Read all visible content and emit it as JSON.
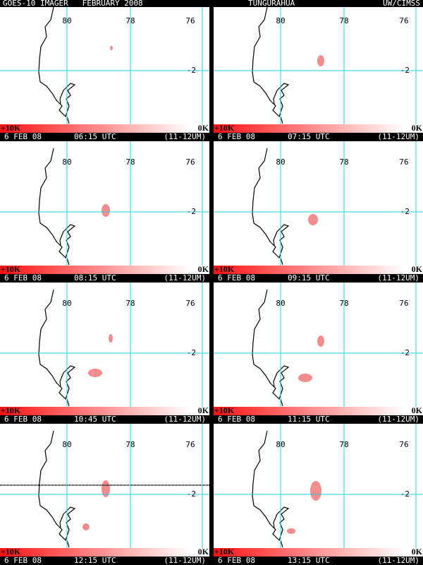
{
  "header": {
    "left": "GOES-10 IMAGER   FEBRUARY 2008",
    "center": "TUNGURAHUA",
    "right": "UW/CIMSS"
  },
  "panels": [
    {
      "date": "6 FEB 08",
      "time": "06:15 UTC",
      "band": "(11-12UM)",
      "scale_max": "+10K",
      "scale_min": "0K",
      "lon_labels": [
        "80",
        "78",
        "76"
      ],
      "lat_label": "-2"
    },
    {
      "date": "6 FEB 08",
      "time": "07:15 UTC",
      "band": "(11-12UM)",
      "scale_max": "+10K",
      "scale_min": "0K",
      "lon_labels": [
        "80",
        "78",
        "76"
      ],
      "lat_label": "-2"
    },
    {
      "date": "6 FEB 08",
      "time": "08:15 UTC",
      "band": "(11-12UM)",
      "scale_max": "+10K",
      "scale_min": "0K",
      "lon_labels": [
        "80",
        "78",
        "76"
      ],
      "lat_label": "-2"
    },
    {
      "date": "6 FEB 08",
      "time": "09:15 UTC",
      "band": "(11-12UM)",
      "scale_max": "+10K",
      "scale_min": "0K",
      "lon_labels": [
        "80",
        "78",
        "76"
      ],
      "lat_label": "-2"
    },
    {
      "date": "6 FEB 08",
      "time": "10:45 UTC",
      "band": "(11-12UM)",
      "scale_max": "+10K",
      "scale_min": "0K",
      "lon_labels": [
        "80",
        "78",
        "76"
      ],
      "lat_label": "-2"
    },
    {
      "date": "6 FEB 08",
      "time": "11:15 UTC",
      "band": "(11-12UM)",
      "scale_max": "+10K",
      "scale_min": "0K",
      "lon_labels": [
        "80",
        "78",
        "76"
      ],
      "lat_label": "-2"
    },
    {
      "date": "6 FEB 08",
      "time": "12:15 UTC",
      "band": "(11-12UM)",
      "scale_max": "+10K",
      "scale_min": "0K",
      "lon_labels": [
        "80",
        "78",
        "76"
      ],
      "lat_label": "-2"
    },
    {
      "date": "6 FEB 08",
      "time": "13:15 UTC",
      "band": "(11-12UM)",
      "scale_max": "+10K",
      "scale_min": "0K",
      "lon_labels": [
        "80",
        "78",
        "76"
      ],
      "lat_label": "-2"
    }
  ]
}
